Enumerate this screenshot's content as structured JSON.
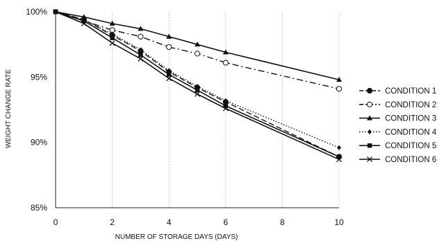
{
  "chart_data": {
    "type": "line",
    "title": "",
    "xlabel": "NUMBER OF STORAGE DAYS  (DAYS)",
    "ylabel": "WEIGHT CHANGE RATE",
    "xlim": [
      0,
      10
    ],
    "ylim": [
      85,
      100
    ],
    "x_ticks": [
      0,
      2,
      4,
      6,
      8,
      10
    ],
    "y_ticks": [
      85,
      90,
      95,
      100
    ],
    "y_tick_labels": [
      "85%",
      "90%",
      "95%",
      "100%"
    ],
    "grid": "vertical dotted",
    "legend_position": "right",
    "x": [
      0,
      1,
      2,
      3,
      4,
      5,
      6,
      10
    ],
    "series": [
      {
        "name": "CONDITION 1",
        "marker": "filled-circle",
        "dash": "dash",
        "values": [
          100,
          99.4,
          98.2,
          97.0,
          95.4,
          94.2,
          93.1,
          88.9
        ]
      },
      {
        "name": "CONDITION 2",
        "marker": "open-circle",
        "dash": "dash-dot",
        "values": [
          100,
          99.3,
          98.6,
          98.1,
          97.3,
          96.8,
          96.1,
          94.1
        ]
      },
      {
        "name": "CONDITION 3",
        "marker": "filled-triangle",
        "dash": "solid",
        "values": [
          100,
          99.6,
          99.1,
          98.7,
          98.1,
          97.5,
          96.9,
          94.8
        ]
      },
      {
        "name": "CONDITION 4",
        "marker": "filled-diamond",
        "dash": "dotted",
        "values": [
          100,
          99.4,
          98.3,
          97.1,
          95.5,
          94.3,
          93.2,
          89.6
        ]
      },
      {
        "name": "CONDITION 5",
        "marker": "filled-square",
        "dash": "solid",
        "values": [
          100,
          99.3,
          98.0,
          96.7,
          95.2,
          94.0,
          92.8,
          88.9
        ]
      },
      {
        "name": "CONDITION 6",
        "marker": "x",
        "dash": "solid",
        "values": [
          100,
          99.1,
          97.6,
          96.4,
          94.9,
          93.7,
          92.6,
          88.7
        ]
      }
    ]
  }
}
